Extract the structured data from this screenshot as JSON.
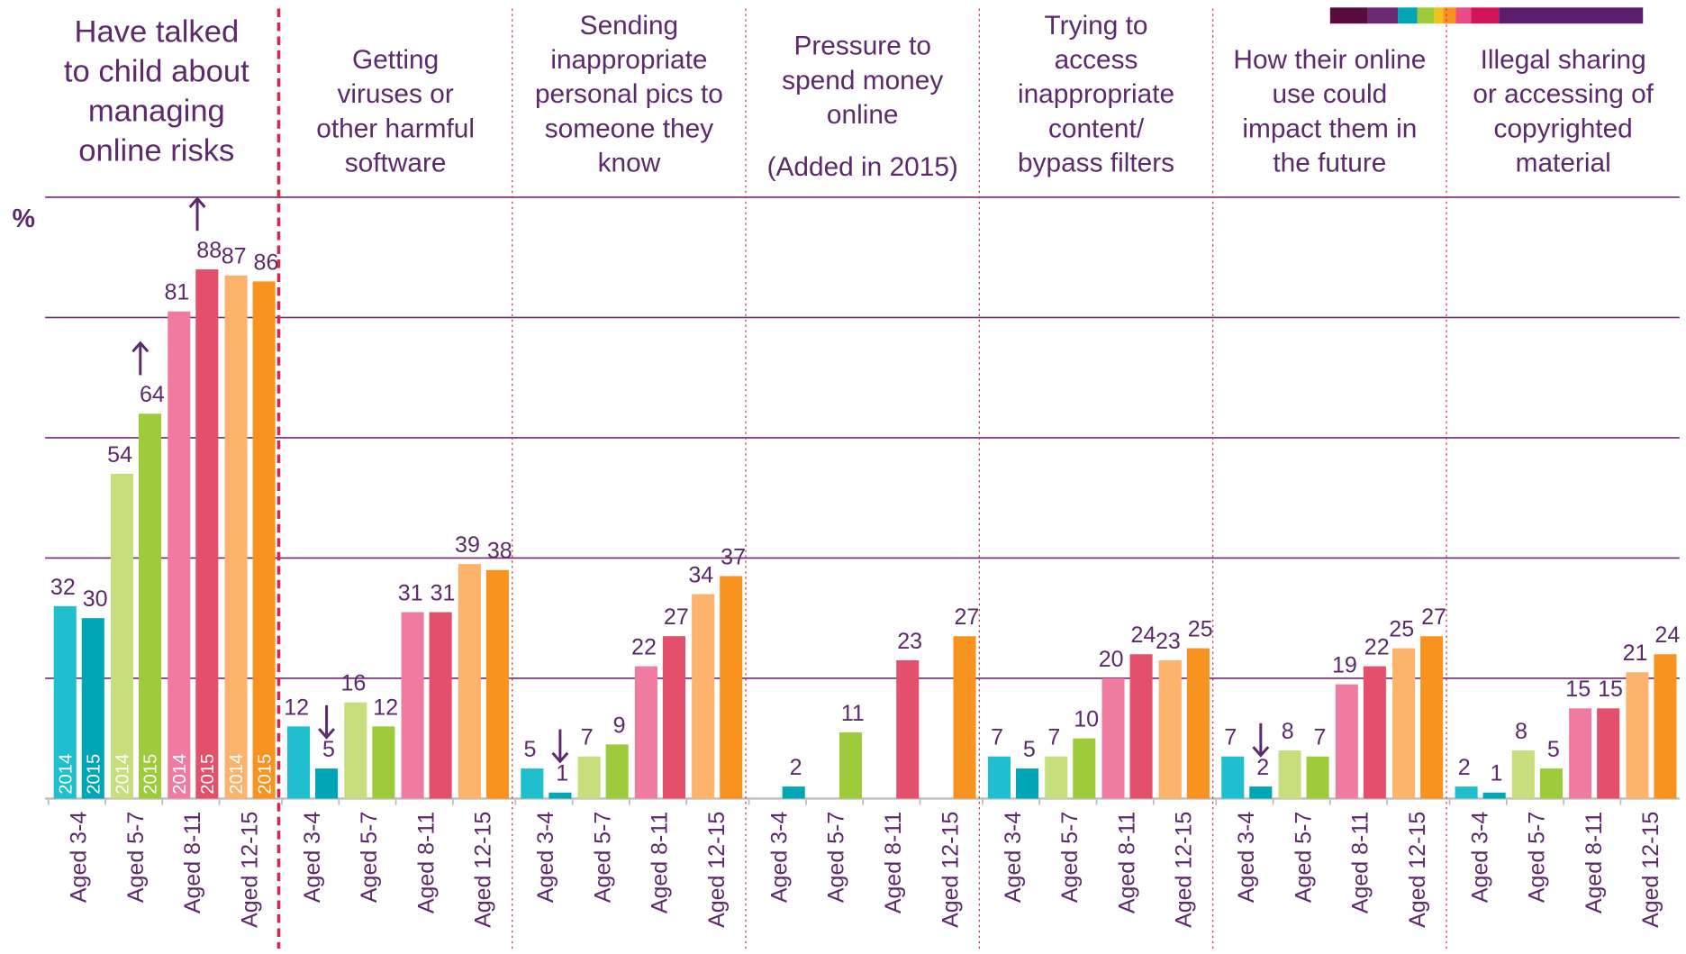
{
  "chart_data": {
    "type": "bar",
    "y_label": "%",
    "categories": [
      "Aged 3-4",
      "Aged 5-7",
      "Aged 8-11",
      "Aged 12-15"
    ],
    "ylim": [
      0,
      100
    ],
    "yticks": [
      0,
      20,
      40,
      60,
      80,
      100
    ],
    "grid": true,
    "panels": [
      {
        "title": [
          "Have talked",
          "to child about",
          "managing",
          "online risks"
        ],
        "series": [
          {
            "name": "2014",
            "colors": [
              "#1fbfcf",
              "#c6df7c",
              "#f07ba1",
              "#fdb36b"
            ],
            "values": [
              32,
              54,
              81,
              87
            ]
          },
          {
            "name": "2015",
            "colors": [
              "#00a5b6",
              "#9dcb3a",
              "#e4506b",
              "#f7931e"
            ],
            "values": [
              30,
              64,
              88,
              86
            ],
            "change": [
              null,
              "up",
              "up",
              null
            ]
          }
        ]
      },
      {
        "title": [
          "Getting",
          "viruses or",
          "other harmful",
          "software"
        ],
        "series": [
          {
            "name": "2014",
            "colors": [
              "#1fbfcf",
              "#c6df7c",
              "#f07ba1",
              "#fdb36b"
            ],
            "values": [
              12,
              16,
              31,
              39
            ]
          },
          {
            "name": "2015",
            "colors": [
              "#00a5b6",
              "#9dcb3a",
              "#e4506b",
              "#f7931e"
            ],
            "values": [
              5,
              12,
              31,
              38
            ],
            "change": [
              "down",
              null,
              null,
              null
            ]
          }
        ]
      },
      {
        "title": [
          "Sending",
          "inappropriate",
          "personal pics to",
          "someone they",
          "know"
        ],
        "series": [
          {
            "name": "2014",
            "colors": [
              "#1fbfcf",
              "#c6df7c",
              "#f07ba1",
              "#fdb36b"
            ],
            "values": [
              5,
              7,
              22,
              34
            ]
          },
          {
            "name": "2015",
            "colors": [
              "#00a5b6",
              "#9dcb3a",
              "#e4506b",
              "#f7931e"
            ],
            "values": [
              1,
              9,
              27,
              37
            ],
            "change": [
              "down",
              null,
              null,
              null
            ]
          }
        ]
      },
      {
        "title": [
          "Pressure to",
          "spend money",
          "online"
        ],
        "note": "(Added in 2015)",
        "series": [
          {
            "name": "2014",
            "colors": [
              "#1fbfcf",
              "#c6df7c",
              "#f07ba1",
              "#fdb36b"
            ],
            "values": [
              null,
              null,
              null,
              null
            ]
          },
          {
            "name": "2015",
            "colors": [
              "#00a5b6",
              "#9dcb3a",
              "#e4506b",
              "#f7931e"
            ],
            "values": [
              2,
              11,
              23,
              27
            ]
          }
        ]
      },
      {
        "title": [
          "Trying to",
          "access",
          "inappropriate",
          "content/",
          "bypass filters"
        ],
        "series": [
          {
            "name": "2014",
            "colors": [
              "#1fbfcf",
              "#c6df7c",
              "#f07ba1",
              "#fdb36b"
            ],
            "values": [
              7,
              7,
              20,
              23
            ]
          },
          {
            "name": "2015",
            "colors": [
              "#00a5b6",
              "#9dcb3a",
              "#e4506b",
              "#f7931e"
            ],
            "values": [
              5,
              10,
              24,
              25
            ]
          }
        ]
      },
      {
        "title": [
          "How their online",
          "use could",
          "impact them in",
          "the future"
        ],
        "series": [
          {
            "name": "2014",
            "colors": [
              "#1fbfcf",
              "#c6df7c",
              "#f07ba1",
              "#fdb36b"
            ],
            "values": [
              7,
              8,
              19,
              25
            ]
          },
          {
            "name": "2015",
            "colors": [
              "#00a5b6",
              "#9dcb3a",
              "#e4506b",
              "#f7931e"
            ],
            "values": [
              2,
              7,
              22,
              27
            ],
            "change": [
              "down",
              null,
              null,
              null
            ]
          }
        ]
      },
      {
        "title": [
          "Illegal sharing",
          "or accessing of",
          "copyrighted",
          "material"
        ],
        "series": [
          {
            "name": "2014",
            "colors": [
              "#1fbfcf",
              "#c6df7c",
              "#f07ba1",
              "#fdb36b"
            ],
            "values": [
              2,
              8,
              15,
              21
            ]
          },
          {
            "name": "2015",
            "colors": [
              "#00a5b6",
              "#9dcb3a",
              "#e4506b",
              "#f7931e"
            ],
            "values": [
              1,
              5,
              15,
              24
            ]
          }
        ]
      }
    ]
  }
}
